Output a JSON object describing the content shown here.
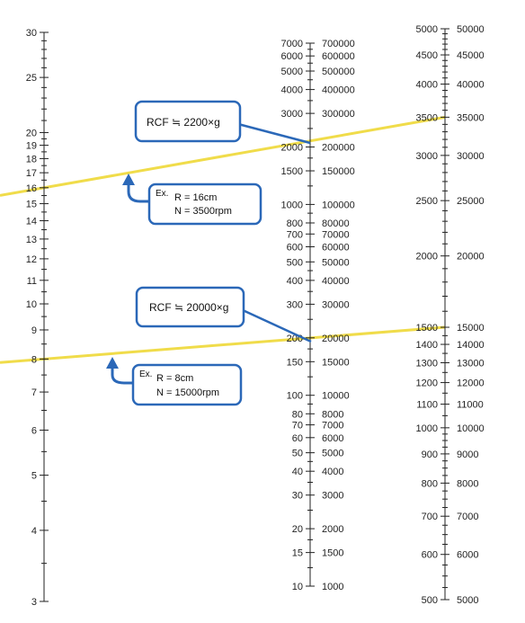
{
  "scales": {
    "radius": {
      "labels": [
        "30",
        "25",
        "20",
        "19",
        "18",
        "17",
        "16",
        "15",
        "14",
        "13",
        "12",
        "11",
        "10",
        "9",
        "8",
        "7",
        "6",
        "5",
        "4",
        "3"
      ],
      "values": [
        30,
        25,
        20,
        19,
        18,
        17,
        16,
        15,
        14,
        13,
        12,
        11,
        10,
        9,
        8,
        7,
        6,
        5,
        4,
        3
      ]
    },
    "rcf": {
      "left_labels": [
        "7000",
        "6000",
        "5000",
        "4000",
        "3000",
        "2000",
        "1500",
        "1000",
        "800",
        "700",
        "600",
        "500",
        "400",
        "300",
        "200",
        "150",
        "100",
        "80",
        "70",
        "60",
        "50",
        "40",
        "30",
        "20",
        "15",
        "10"
      ],
      "right_labels": [
        "700000",
        "600000",
        "500000",
        "400000",
        "300000",
        "200000",
        "150000",
        "100000",
        "80000",
        "70000",
        "60000",
        "50000",
        "40000",
        "30000",
        "20000",
        "15000",
        "10000",
        "8000",
        "7000",
        "6000",
        "5000",
        "4000",
        "3000",
        "2000",
        "1500",
        "1000"
      ],
      "values": [
        7000,
        6000,
        5000,
        4000,
        3000,
        2000,
        1500,
        1000,
        800,
        700,
        600,
        500,
        400,
        300,
        200,
        150,
        100,
        80,
        70,
        60,
        50,
        40,
        30,
        20,
        15,
        10
      ]
    },
    "rpm": {
      "left_labels": [
        "5000",
        "4500",
        "4000",
        "3500",
        "3000",
        "2500",
        "2000",
        "1500",
        "1400",
        "1300",
        "1200",
        "1100",
        "1000",
        "900",
        "800",
        "700",
        "600",
        "500"
      ],
      "right_labels": [
        "50000",
        "45000",
        "40000",
        "35000",
        "30000",
        "25000",
        "20000",
        "15000",
        "14000",
        "13000",
        "12000",
        "11000",
        "10000",
        "9000",
        "8000",
        "7000",
        "6000",
        "5000"
      ],
      "values": [
        5000,
        4500,
        4000,
        3500,
        3000,
        2500,
        2000,
        1500,
        1400,
        1300,
        1200,
        1100,
        1000,
        900,
        800,
        700,
        600,
        500
      ]
    }
  },
  "examples": [
    {
      "radius_cm": 16,
      "rpm": 3500,
      "rcf_g": 2200,
      "rcf_label": "RCF ≒ 2200×g",
      "ex_prefix": "Ex.",
      "r_line": "R = 16cm",
      "n_line": "N = 3500rpm"
    },
    {
      "radius_cm": 8,
      "rpm": 15000,
      "rcf_g": 20000,
      "rcf_label": "RCF ≒ 20000×g",
      "ex_prefix": "Ex.",
      "r_line": "R = 8cm",
      "n_line": "N = 15000rpm"
    }
  ],
  "colors": {
    "axis": "#222222",
    "example_line": "#f0dc4a",
    "callout_border": "#2b68b8",
    "arrow": "#2b68b8"
  }
}
